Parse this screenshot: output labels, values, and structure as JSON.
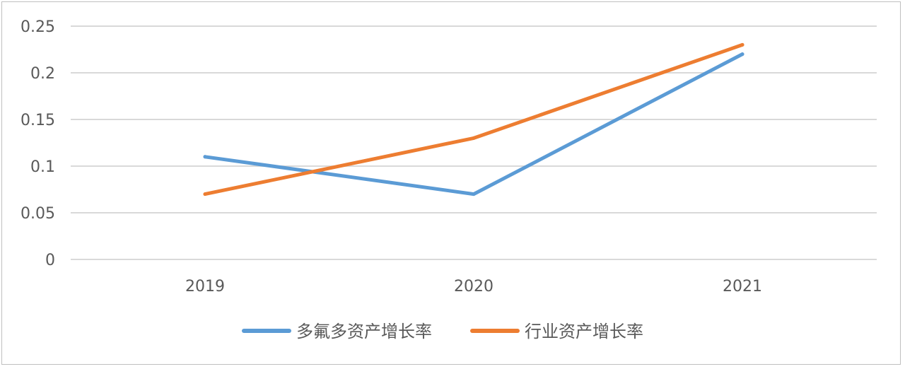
{
  "chart_data": {
    "type": "line",
    "categories": [
      "2019",
      "2020",
      "2021"
    ],
    "series": [
      {
        "name": "多氟多资产增长率",
        "values": [
          0.11,
          0.07,
          0.22
        ],
        "color": "#5b9bd5"
      },
      {
        "name": "行业资产增长率",
        "values": [
          0.07,
          0.13,
          0.23
        ],
        "color": "#ed7d31"
      }
    ],
    "ylim": [
      0,
      0.25
    ],
    "yticks": [
      "0",
      "0.05",
      "0.1",
      "0.15",
      "0.2",
      "0.25"
    ],
    "ytick_values": [
      0,
      0.05,
      0.1,
      0.15,
      0.2,
      0.25
    ],
    "grid": true,
    "legend_position": "bottom",
    "gridline_color": "#d9d9d9"
  }
}
